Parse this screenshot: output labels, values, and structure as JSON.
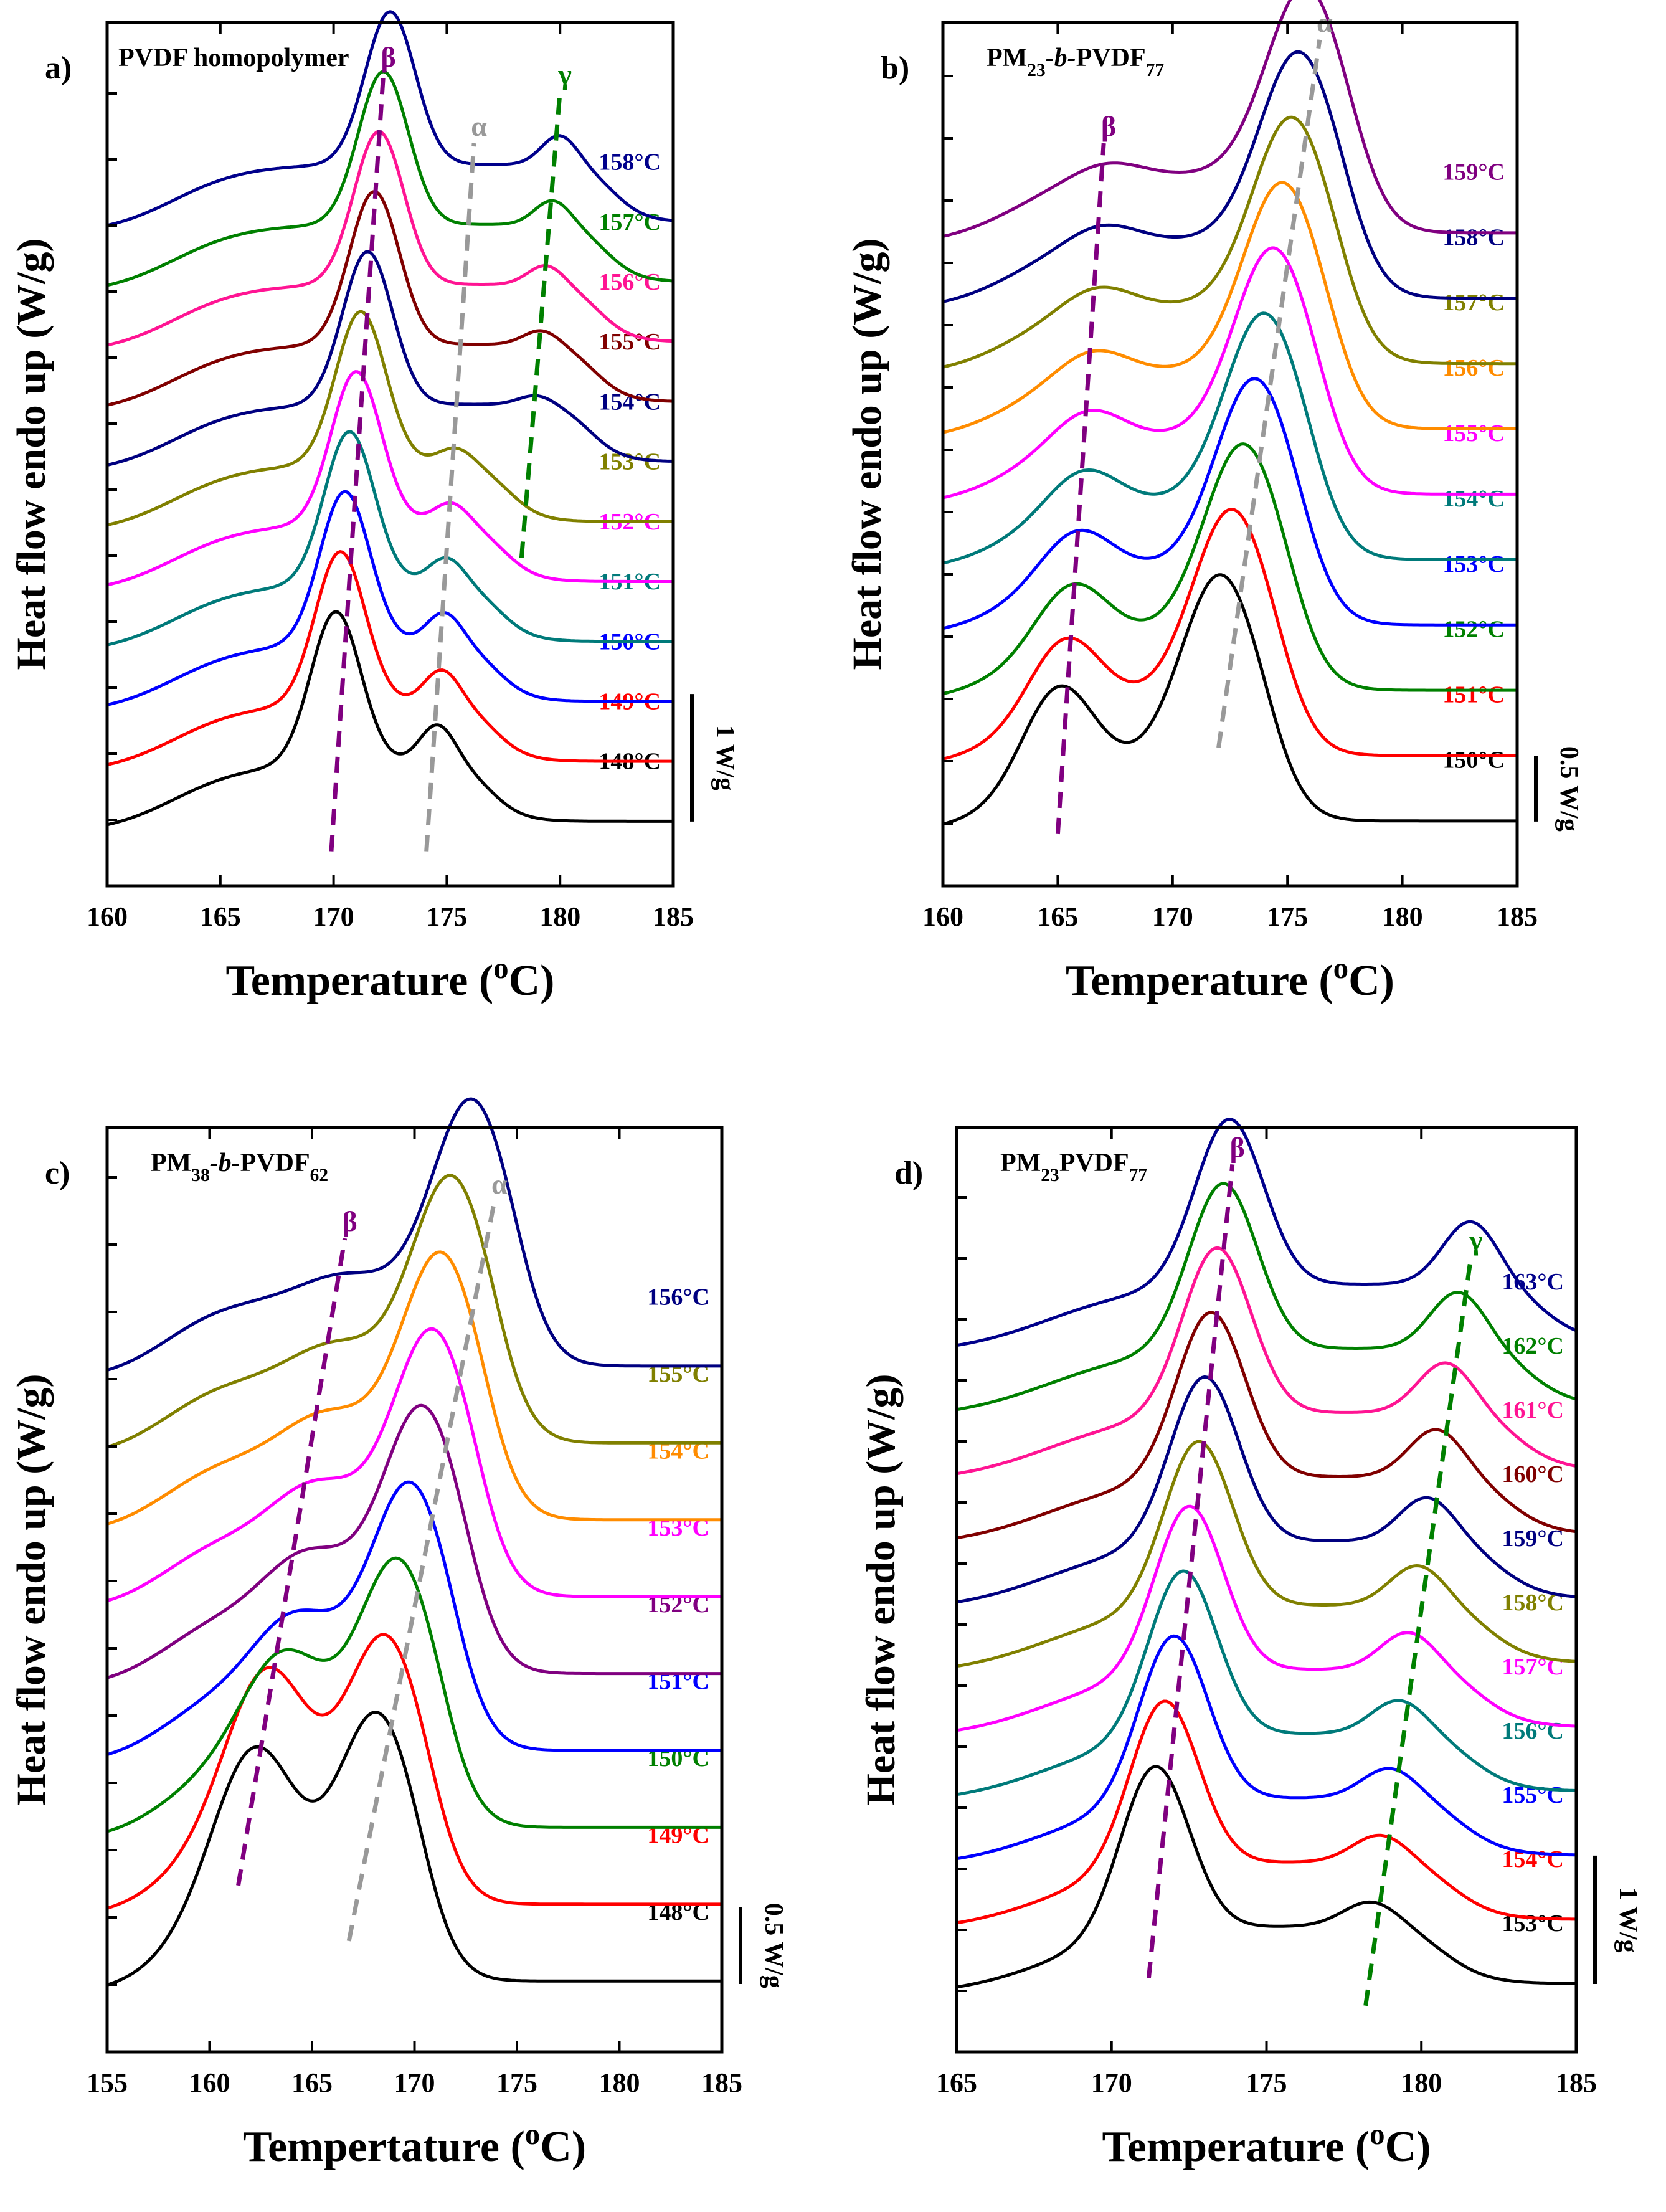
{
  "figure_caption": "",
  "chart_data": [
    {
      "panel": "a)",
      "type": "line",
      "title": "PVDF homopolymer",
      "xlabel": "Temperature (oC)",
      "ylabel": "Heat flow endo up (W/g)",
      "xlim": [
        160,
        185
      ],
      "xticks": [
        160,
        165,
        170,
        175,
        180,
        185
      ],
      "scale_bar": "1 W/g",
      "scale_bar_wg": 1,
      "series_spacing_wg": 0.47,
      "series": [
        {
          "label": "148°C",
          "color": "#000000",
          "peaks": [
            {
              "t": 170.1,
              "h": 1.2,
              "w": 1.1
            },
            {
              "t": 174.6,
              "h": 0.32,
              "w": 0.8
            }
          ]
        },
        {
          "label": "149°C",
          "color": "#ff0000",
          "peaks": [
            {
              "t": 170.3,
              "h": 1.2,
              "w": 1.1
            },
            {
              "t": 174.8,
              "h": 0.28,
              "w": 0.8
            }
          ]
        },
        {
          "label": "150°C",
          "color": "#0000ff",
          "peaks": [
            {
              "t": 170.5,
              "h": 1.2,
              "w": 1.1
            },
            {
              "t": 174.9,
              "h": 0.26,
              "w": 0.8
            }
          ]
        },
        {
          "label": "151°C",
          "color": "#007a7a",
          "peaks": [
            {
              "t": 170.7,
              "h": 1.2,
              "w": 1.1
            },
            {
              "t": 175.0,
              "h": 0.22,
              "w": 0.8
            }
          ]
        },
        {
          "label": "152°C",
          "color": "#ff00ff",
          "peaks": [
            {
              "t": 171.0,
              "h": 1.2,
              "w": 1.1
            },
            {
              "t": 175.2,
              "h": 0.18,
              "w": 0.8
            }
          ]
        },
        {
          "label": "153°C",
          "color": "#808000",
          "peaks": [
            {
              "t": 171.2,
              "h": 1.2,
              "w": 1.1
            },
            {
              "t": 175.4,
              "h": 0.14,
              "w": 0.8
            }
          ]
        },
        {
          "label": "154°C",
          "color": "#000080",
          "peaks": [
            {
              "t": 171.5,
              "h": 1.2,
              "w": 1.1
            },
            {
              "t": 179.0,
              "h": 0.08,
              "w": 0.8
            }
          ]
        },
        {
          "label": "155°C",
          "color": "#800000",
          "peaks": [
            {
              "t": 171.8,
              "h": 1.2,
              "w": 1.1
            },
            {
              "t": 179.2,
              "h": 0.12,
              "w": 0.8
            }
          ]
        },
        {
          "label": "156°C",
          "color": "#ff1493",
          "peaks": [
            {
              "t": 172.0,
              "h": 1.2,
              "w": 1.1
            },
            {
              "t": 179.4,
              "h": 0.16,
              "w": 0.8
            }
          ]
        },
        {
          "label": "157°C",
          "color": "#008000",
          "peaks": [
            {
              "t": 172.2,
              "h": 1.2,
              "w": 1.1
            },
            {
              "t": 179.7,
              "h": 0.2,
              "w": 0.8
            }
          ]
        },
        {
          "label": "158°C",
          "color": "#00008b",
          "peaks": [
            {
              "t": 172.5,
              "h": 1.2,
              "w": 1.1
            },
            {
              "t": 180.0,
              "h": 0.24,
              "w": 0.8
            }
          ]
        }
      ],
      "guides": [
        {
          "label": "β",
          "color": "#800080",
          "from": [
            169.9,
            0.04
          ],
          "to": [
            172.2,
            0.94
          ]
        },
        {
          "label": "α",
          "color": "#999999",
          "from": [
            174.1,
            0.04
          ],
          "to": [
            176.2,
            0.86
          ]
        },
        {
          "label": "γ",
          "color": "#008000",
          "from": [
            178.3,
            0.38
          ],
          "to": [
            180.0,
            0.92
          ]
        }
      ]
    },
    {
      "panel": "b)",
      "type": "line",
      "title": "PM23-b-PVDF77",
      "xlabel": "Temperature (oC)",
      "ylabel": "Heat flow endo up (W/g)",
      "xlim": [
        160,
        185
      ],
      "xticks": [
        160,
        165,
        170,
        175,
        180,
        185
      ],
      "scale_bar": "0.5 W/g",
      "scale_bar_wg": 0.5,
      "series_spacing_wg": 0.5,
      "series": [
        {
          "label": "150°C",
          "color": "#000000",
          "peaks": [
            {
              "t": 165.0,
              "h": 0.7,
              "w": 1.5
            },
            {
              "t": 172.1,
              "h": 1.45,
              "w": 1.7
            }
          ]
        },
        {
          "label": "151°C",
          "color": "#ff0000",
          "peaks": [
            {
              "t": 165.3,
              "h": 0.55,
              "w": 1.5
            },
            {
              "t": 172.6,
              "h": 1.45,
              "w": 1.7
            }
          ]
        },
        {
          "label": "152°C",
          "color": "#008000",
          "peaks": [
            {
              "t": 165.6,
              "h": 0.45,
              "w": 1.5
            },
            {
              "t": 173.1,
              "h": 1.45,
              "w": 1.7
            }
          ]
        },
        {
          "label": "153°C",
          "color": "#0000ff",
          "peaks": [
            {
              "t": 165.8,
              "h": 0.35,
              "w": 1.5
            },
            {
              "t": 173.6,
              "h": 1.45,
              "w": 1.7
            }
          ]
        },
        {
          "label": "154°C",
          "color": "#007a7a",
          "peaks": [
            {
              "t": 166.1,
              "h": 0.3,
              "w": 1.5
            },
            {
              "t": 174.0,
              "h": 1.45,
              "w": 1.7
            }
          ]
        },
        {
          "label": "155°C",
          "color": "#ff00ff",
          "peaks": [
            {
              "t": 166.3,
              "h": 0.25,
              "w": 1.5
            },
            {
              "t": 174.4,
              "h": 1.45,
              "w": 1.7
            }
          ]
        },
        {
          "label": "156°C",
          "color": "#ff8c00",
          "peaks": [
            {
              "t": 166.5,
              "h": 0.2,
              "w": 1.5
            },
            {
              "t": 174.8,
              "h": 1.45,
              "w": 1.7
            }
          ]
        },
        {
          "label": "157°C",
          "color": "#808000",
          "peaks": [
            {
              "t": 166.7,
              "h": 0.18,
              "w": 1.5
            },
            {
              "t": 175.2,
              "h": 1.45,
              "w": 1.7
            }
          ]
        },
        {
          "label": "158°C",
          "color": "#000080",
          "peaks": [
            {
              "t": 166.9,
              "h": 0.15,
              "w": 1.5
            },
            {
              "t": 175.5,
              "h": 1.45,
              "w": 1.7
            }
          ]
        },
        {
          "label": "159°C",
          "color": "#800080",
          "peaks": [
            {
              "t": 167.1,
              "h": 0.12,
              "w": 1.5
            },
            {
              "t": 175.8,
              "h": 1.45,
              "w": 1.7
            }
          ]
        }
      ],
      "guides": [
        {
          "label": "β",
          "color": "#800080",
          "from": [
            165.0,
            0.06
          ],
          "to": [
            167.0,
            0.86
          ]
        },
        {
          "label": "α",
          "color": "#999999",
          "from": [
            172.0,
            0.16
          ],
          "to": [
            176.4,
            0.98
          ]
        }
      ]
    },
    {
      "panel": "c)",
      "type": "line",
      "title": "PM38-b-PVDF62",
      "xlabel": "Tempertature (oC)",
      "ylabel": "Heat flow endo up (W/g)",
      "xlim": [
        155,
        185
      ],
      "xticks": [
        155,
        160,
        165,
        170,
        175,
        180,
        185
      ],
      "scale_bar": "0.5 W/g",
      "scale_bar_wg": 0.5,
      "series_spacing_wg": 0.5,
      "series": [
        {
          "label": "148°C",
          "color": "#000000",
          "peaks": [
            {
              "t": 162.2,
              "h": 1.1,
              "w": 2.0
            },
            {
              "t": 168.2,
              "h": 1.3,
              "w": 1.9
            }
          ]
        },
        {
          "label": "149°C",
          "color": "#ff0000",
          "peaks": [
            {
              "t": 162.8,
              "h": 1.1,
              "w": 2.0
            },
            {
              "t": 168.6,
              "h": 1.3,
              "w": 1.9
            }
          ]
        },
        {
          "label": "150°C",
          "color": "#008000",
          "peaks": [
            {
              "t": 163.6,
              "h": 0.7,
              "w": 2.0
            },
            {
              "t": 169.2,
              "h": 1.3,
              "w": 1.9
            }
          ]
        },
        {
          "label": "151°C",
          "color": "#0000ff",
          "peaks": [
            {
              "t": 164.2,
              "h": 0.45,
              "w": 2.0
            },
            {
              "t": 169.8,
              "h": 1.3,
              "w": 1.9
            }
          ]
        },
        {
          "label": "152°C",
          "color": "#800080",
          "peaks": [
            {
              "t": 164.8,
              "h": 0.35,
              "w": 2.0
            },
            {
              "t": 170.4,
              "h": 1.3,
              "w": 1.9
            }
          ]
        },
        {
          "label": "153°C",
          "color": "#ff00ff",
          "peaks": [
            {
              "t": 165.2,
              "h": 0.3,
              "w": 2.0
            },
            {
              "t": 170.9,
              "h": 1.3,
              "w": 1.9
            }
          ]
        },
        {
          "label": "154°C",
          "color": "#ff8c00",
          "peaks": [
            {
              "t": 165.7,
              "h": 0.25,
              "w": 2.0
            },
            {
              "t": 171.3,
              "h": 1.3,
              "w": 1.9
            }
          ]
        },
        {
          "label": "155°C",
          "color": "#808000",
          "peaks": [
            {
              "t": 166.1,
              "h": 0.2,
              "w": 2.0
            },
            {
              "t": 171.8,
              "h": 1.3,
              "w": 1.9
            }
          ]
        },
        {
          "label": "156°C",
          "color": "#000080",
          "peaks": [
            {
              "t": 166.6,
              "h": 0.15,
              "w": 2.0
            },
            {
              "t": 172.8,
              "h": 1.3,
              "w": 1.9
            }
          ]
        }
      ],
      "guides": [
        {
          "label": "β",
          "color": "#800080",
          "from": [
            161.4,
            0.18
          ],
          "to": [
            166.6,
            0.88
          ]
        },
        {
          "label": "α",
          "color": "#999999",
          "from": [
            166.8,
            0.12
          ],
          "to": [
            173.9,
            0.92
          ]
        }
      ]
    },
    {
      "panel": "d)",
      "type": "line",
      "title": "PM23PVDF77",
      "xlabel": "Temperature (oC)",
      "ylabel": "Heat flow endo up (W/g)",
      "xlim": [
        165,
        185
      ],
      "xticks": [
        165,
        170,
        175,
        180,
        185
      ],
      "scale_bar": "1 W/g",
      "scale_bar_wg": 1,
      "series_spacing_wg": 0.5,
      "series": [
        {
          "label": "153°C",
          "color": "#000000",
          "peaks": [
            {
              "t": 171.4,
              "h": 1.3,
              "w": 1.1
            },
            {
              "t": 178.4,
              "h": 0.2,
              "w": 0.9
            }
          ]
        },
        {
          "label": "154°C",
          "color": "#ff0000",
          "peaks": [
            {
              "t": 171.7,
              "h": 1.3,
              "w": 1.1
            },
            {
              "t": 178.7,
              "h": 0.22,
              "w": 0.9
            }
          ]
        },
        {
          "label": "155°C",
          "color": "#0000ff",
          "peaks": [
            {
              "t": 172.0,
              "h": 1.3,
              "w": 1.1
            },
            {
              "t": 179.0,
              "h": 0.24,
              "w": 0.9
            }
          ]
        },
        {
          "label": "156°C",
          "color": "#007a7a",
          "peaks": [
            {
              "t": 172.3,
              "h": 1.3,
              "w": 1.1
            },
            {
              "t": 179.3,
              "h": 0.27,
              "w": 0.9
            }
          ]
        },
        {
          "label": "157°C",
          "color": "#ff00ff",
          "peaks": [
            {
              "t": 172.5,
              "h": 1.3,
              "w": 1.1
            },
            {
              "t": 179.6,
              "h": 0.3,
              "w": 0.9
            }
          ]
        },
        {
          "label": "158°C",
          "color": "#808000",
          "peaks": [
            {
              "t": 172.8,
              "h": 1.3,
              "w": 1.1
            },
            {
              "t": 179.9,
              "h": 0.32,
              "w": 0.9
            }
          ]
        },
        {
          "label": "159°C",
          "color": "#000080",
          "peaks": [
            {
              "t": 173.0,
              "h": 1.3,
              "w": 1.1
            },
            {
              "t": 180.2,
              "h": 0.35,
              "w": 0.9
            }
          ]
        },
        {
          "label": "160°C",
          "color": "#800000",
          "peaks": [
            {
              "t": 173.2,
              "h": 1.3,
              "w": 1.1
            },
            {
              "t": 180.5,
              "h": 0.38,
              "w": 0.9
            }
          ]
        },
        {
          "label": "161°C",
          "color": "#ff1493",
          "peaks": [
            {
              "t": 173.4,
              "h": 1.3,
              "w": 1.1
            },
            {
              "t": 180.8,
              "h": 0.4,
              "w": 0.9
            }
          ]
        },
        {
          "label": "162°C",
          "color": "#008000",
          "peaks": [
            {
              "t": 173.6,
              "h": 1.3,
              "w": 1.1
            },
            {
              "t": 181.2,
              "h": 0.45,
              "w": 0.9
            }
          ]
        },
        {
          "label": "163°C",
          "color": "#00008b",
          "peaks": [
            {
              "t": 173.8,
              "h": 1.3,
              "w": 1.1
            },
            {
              "t": 181.6,
              "h": 0.5,
              "w": 0.9
            }
          ]
        }
      ],
      "guides": [
        {
          "label": "β",
          "color": "#800080",
          "from": [
            171.2,
            0.08
          ],
          "to": [
            173.9,
            0.96
          ]
        },
        {
          "label": "γ",
          "color": "#008000",
          "from": [
            178.2,
            0.05
          ],
          "to": [
            181.6,
            0.86
          ]
        }
      ]
    }
  ]
}
